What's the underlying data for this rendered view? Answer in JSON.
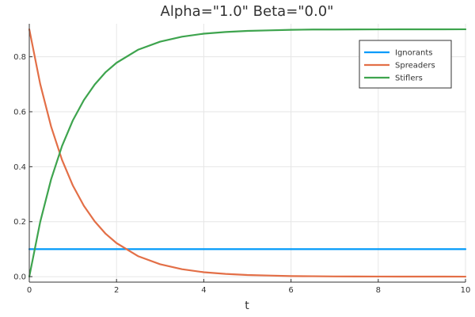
{
  "chart_data": {
    "type": "line",
    "title": "Alpha=\"1.0\"  Beta=\"0.0\"",
    "xlabel": "t",
    "ylabel": "",
    "xlim": [
      0,
      10
    ],
    "ylim": [
      -0.02,
      0.92
    ],
    "xticks": [
      0,
      2,
      4,
      6,
      8,
      10
    ],
    "yticks": [
      0.0,
      0.2,
      0.4,
      0.6,
      0.8
    ],
    "ytick_labels": [
      "0.0",
      "0.2",
      "0.4",
      "0.6",
      "0.8"
    ],
    "grid": true,
    "legend_position": "top-right",
    "x": [
      0,
      0.25,
      0.5,
      0.75,
      1,
      1.25,
      1.5,
      1.75,
      2,
      2.5,
      3,
      3.5,
      4,
      4.5,
      5,
      5.5,
      6,
      6.5,
      7,
      7.5,
      8,
      8.5,
      9,
      9.5,
      10
    ],
    "series": [
      {
        "name": "Ignorants",
        "color": "#009AFA",
        "values": [
          0.1,
          0.1,
          0.1,
          0.1,
          0.1,
          0.1,
          0.1,
          0.1,
          0.1,
          0.1,
          0.1,
          0.1,
          0.1,
          0.1,
          0.1,
          0.1,
          0.1,
          0.1,
          0.1,
          0.1,
          0.1,
          0.1,
          0.1,
          0.1,
          0.1
        ]
      },
      {
        "name": "Spreaders",
        "color": "#E36F47",
        "values": [
          0.9,
          0.701,
          0.546,
          0.425,
          0.331,
          0.258,
          0.201,
          0.156,
          0.122,
          0.074,
          0.045,
          0.027,
          0.016,
          0.01,
          0.006,
          0.004,
          0.002,
          0.0014,
          0.0008,
          0.0005,
          0.0003,
          0.0002,
          0.0001,
          0.0001,
          0.0
        ]
      },
      {
        "name": "Stiflers",
        "color": "#3EA44E",
        "values": [
          0.0,
          0.199,
          0.354,
          0.475,
          0.569,
          0.642,
          0.699,
          0.744,
          0.778,
          0.826,
          0.855,
          0.873,
          0.884,
          0.89,
          0.894,
          0.896,
          0.898,
          0.899,
          0.899,
          0.8995,
          0.8997,
          0.8998,
          0.8999,
          0.8999,
          0.9
        ]
      }
    ]
  }
}
